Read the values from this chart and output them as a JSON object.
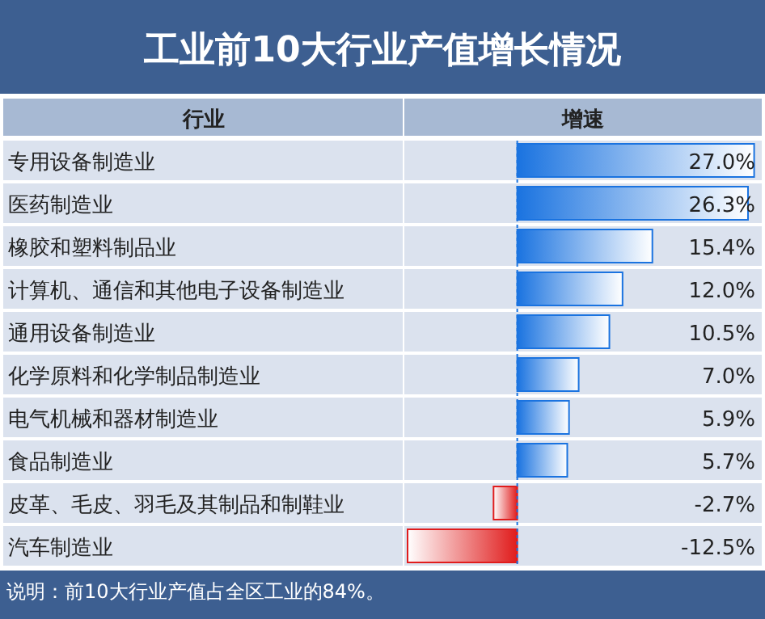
{
  "chart_data": {
    "type": "bar",
    "orientation": "horizontal",
    "title": "工业前10大行业产值增长情况",
    "ylabel": "行业",
    "xlabel": "增速",
    "categories": [
      "专用设备制造业",
      "医药制造业",
      "橡胶和塑料制品业",
      "计算机、通信和其他电子设备制造业",
      "通用设备制造业",
      "化学原料和化学制品制造业",
      "电气机械和器材制造业",
      "食品制造业",
      "皮革、毛皮、羽毛及其制品和制鞋业",
      "汽车制造业"
    ],
    "values": [
      27.0,
      26.3,
      15.4,
      12.0,
      10.5,
      7.0,
      5.9,
      5.7,
      -2.7,
      -12.5
    ],
    "value_labels": [
      "27.0%",
      "26.3%",
      "15.4%",
      "12.0%",
      "10.5%",
      "7.0%",
      "5.9%",
      "5.7%",
      "-2.7%",
      "-12.5%"
    ],
    "colors": [
      "#1a73e0",
      "#1a73e0",
      "#1a73e0",
      "#1a73e0",
      "#1a73e0",
      "#1a73e0",
      "#1a73e0",
      "#1a73e0",
      "#e01c1c",
      "#e01c1c"
    ],
    "xlim": [
      -12.5,
      27.5
    ],
    "ref_lines": [
      {
        "axis": "x",
        "value": 0,
        "color": "#1a73e0",
        "line_style": "dashed"
      }
    ],
    "annotations": [
      "说明：前10大行业产值占全区工业的84%。"
    ]
  }
}
